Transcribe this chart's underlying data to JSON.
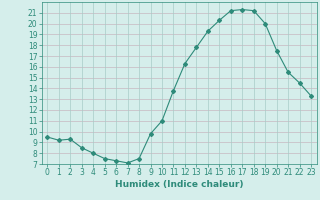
{
  "x": [
    0,
    1,
    2,
    3,
    4,
    5,
    6,
    7,
    8,
    9,
    10,
    11,
    12,
    13,
    14,
    15,
    16,
    17,
    18,
    19,
    20,
    21,
    22,
    23
  ],
  "y": [
    9.5,
    9.2,
    9.3,
    8.5,
    8.0,
    7.5,
    7.3,
    7.1,
    7.5,
    9.8,
    11.0,
    13.8,
    16.3,
    17.8,
    19.3,
    20.3,
    21.2,
    21.3,
    21.2,
    20.0,
    17.5,
    15.5,
    14.5,
    13.3
  ],
  "line_color": "#2e8b7a",
  "marker": "D",
  "marker_size": 2.0,
  "bg_color": "#d5eeeb",
  "grid_color_h": "#c8b8c0",
  "grid_color_v": "#a8ccc8",
  "xlabel": "Humidex (Indice chaleur)",
  "ylabel": "",
  "xlim": [
    -0.5,
    23.5
  ],
  "ylim": [
    7,
    22
  ],
  "yticks": [
    7,
    8,
    9,
    10,
    11,
    12,
    13,
    14,
    15,
    16,
    17,
    18,
    19,
    20,
    21
  ],
  "xticks": [
    0,
    1,
    2,
    3,
    4,
    5,
    6,
    7,
    8,
    9,
    10,
    11,
    12,
    13,
    14,
    15,
    16,
    17,
    18,
    19,
    20,
    21,
    22,
    23
  ],
  "label_fontsize": 6.5,
  "tick_fontsize": 5.5
}
